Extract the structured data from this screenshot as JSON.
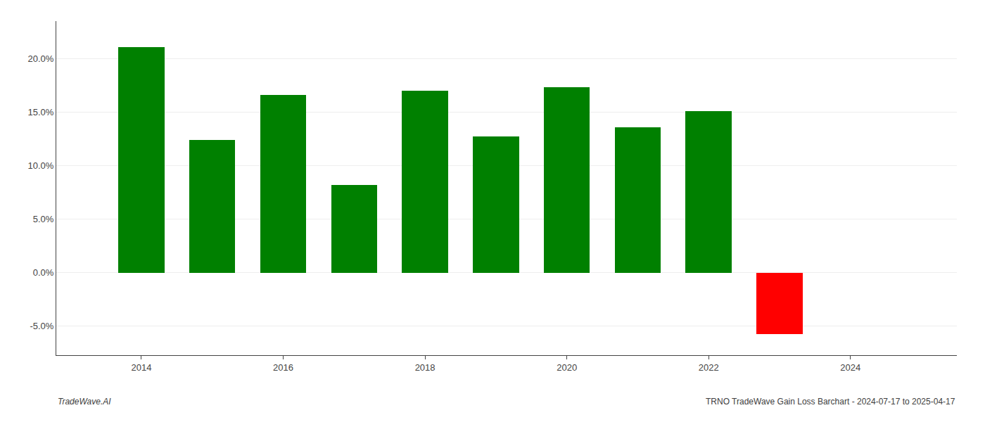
{
  "chart_data": {
    "type": "bar",
    "title": "TRNO TradeWave Gain Loss Barchart - 2024-07-17 to 2025-04-17",
    "annotations": [
      "TradeWave.AI"
    ],
    "x": [
      2014,
      2015,
      2016,
      2017,
      2018,
      2019,
      2020,
      2021,
      2022,
      2023
    ],
    "values": [
      0.211,
      0.124,
      0.166,
      0.082,
      0.17,
      0.127,
      0.173,
      0.136,
      0.151,
      -0.057
    ],
    "colors": [
      "#008000",
      "#008000",
      "#008000",
      "#008000",
      "#008000",
      "#008000",
      "#008000",
      "#008000",
      "#008000",
      "#ff0000"
    ],
    "xlim": [
      2012.8,
      2025.5
    ],
    "xticks": [
      2014,
      2016,
      2018,
      2020,
      2022,
      2024
    ],
    "ylim": [
      -0.077,
      0.235
    ],
    "yticks": [
      {
        "value": -0.05,
        "label": "-5.0%"
      },
      {
        "value": 0.0,
        "label": "0.0%"
      },
      {
        "value": 0.05,
        "label": "5.0%"
      },
      {
        "value": 0.1,
        "label": "10.0%"
      },
      {
        "value": 0.15,
        "label": "15.0%"
      },
      {
        "value": 0.2,
        "label": "20.0%"
      }
    ],
    "grid": true
  }
}
